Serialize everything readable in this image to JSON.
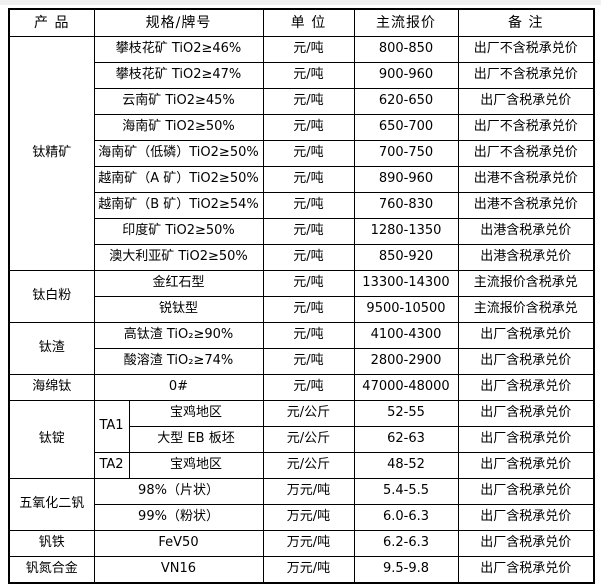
{
  "page": {
    "background": "#ffffff",
    "grid_color": "#000000",
    "text_color": "#000000",
    "top_edge_color": "#f0f0f0"
  },
  "table": {
    "headers": [
      "产 品",
      "规格/牌号",
      "单 位",
      "主流报价",
      "备 注"
    ],
    "groups": [
      {
        "product": "钛精矿",
        "rows": [
          {
            "spec": "攀枝花矿 TiO2≥46%",
            "unit": "元/吨",
            "price": "800-850",
            "note": "出厂不含税承兑价"
          },
          {
            "spec": "攀枝花矿 TiO2≥47%",
            "unit": "元/吨",
            "price": "900-960",
            "note": "出厂不含税承兑价"
          },
          {
            "spec": "云南矿 TiO2≥45%",
            "unit": "元/吨",
            "price": "620-650",
            "note": "出厂含税承兑价"
          },
          {
            "spec": "海南矿 TiO2≥50%",
            "unit": "元/吨",
            "price": "650-700",
            "note": "出厂不含税承兑价"
          },
          {
            "spec": "海南矿（低磷）TiO2≥50%",
            "unit": "元/吨",
            "price": "700-750",
            "note": "出厂不含税承兑价"
          },
          {
            "spec": "越南矿（A 矿）TiO2≥50%",
            "unit": "元/吨",
            "price": "890-960",
            "note": "出港不含税承兑价"
          },
          {
            "spec": "越南矿（B 矿）TiO2≥54%",
            "unit": "元/吨",
            "price": "760-830",
            "note": "出港不含税承兑价"
          },
          {
            "spec": "印度矿 TiO2≥50%",
            "unit": "元/吨",
            "price": "1280-1350",
            "note": "出港含税承兑价"
          },
          {
            "spec": "澳大利亚矿 TiO2≥50%",
            "unit": "元/吨",
            "price": "850-920",
            "note": "出港含税承兑价"
          }
        ]
      },
      {
        "product": "钛白粉",
        "rows": [
          {
            "spec": "金红石型",
            "unit": "元/吨",
            "price": "13300-14300",
            "note": "主流报价含税承兑"
          },
          {
            "spec": "锐钛型",
            "unit": "元/吨",
            "price": "9500-10500",
            "note": "主流报价含税承兑"
          }
        ]
      },
      {
        "product": "钛渣",
        "rows": [
          {
            "spec": "高钛渣 TiO₂≥90%",
            "unit": "元/吨",
            "price": "4100-4300",
            "note": "出厂含税承兑价"
          },
          {
            "spec": "酸溶渣 TiO₂≥74%",
            "unit": "元/吨",
            "price": "2800-2900",
            "note": "出厂含税承兑价"
          }
        ]
      },
      {
        "product": "海绵钛",
        "rows": [
          {
            "spec": "0#",
            "unit": "元/吨",
            "price": "47000-48000",
            "note": "出厂含税承兑价"
          }
        ]
      },
      {
        "product": "钛锭",
        "rows": [
          {
            "grade": "TA1",
            "grade_rowspan": 2,
            "spec": "宝鸡地区",
            "unit": "元/公斤",
            "price": "52-55",
            "note": "出厂含税承兑价"
          },
          {
            "spec": "大型 EB 板坯",
            "unit": "元/公斤",
            "price": "62-63",
            "note": "出厂含税承兑价"
          },
          {
            "grade": "TA2",
            "grade_rowspan": 1,
            "spec": "宝鸡地区",
            "unit": "元/公斤",
            "price": "48-52",
            "note": "出厂含税承兑价"
          }
        ]
      },
      {
        "product": "五氧化二钒",
        "rows": [
          {
            "spec": "98%（片状）",
            "unit": "万元/吨",
            "price": "5.4-5.5",
            "note": "出厂含税承兑价"
          },
          {
            "spec": "99%（粉状）",
            "unit": "万元/吨",
            "price": "6.0-6.3",
            "note": "出厂含税承兑价"
          }
        ]
      },
      {
        "product": "钒铁",
        "rows": [
          {
            "spec": "FeV50",
            "unit": "万元/吨",
            "price": "6.2-6.3",
            "note": "出厂含税承兑价"
          }
        ]
      },
      {
        "product": "钒氮合金",
        "rows": [
          {
            "spec": "VN16",
            "unit": "万元/吨",
            "price": "9.5-9.8",
            "note": "出厂含税承兑价"
          }
        ]
      }
    ]
  }
}
